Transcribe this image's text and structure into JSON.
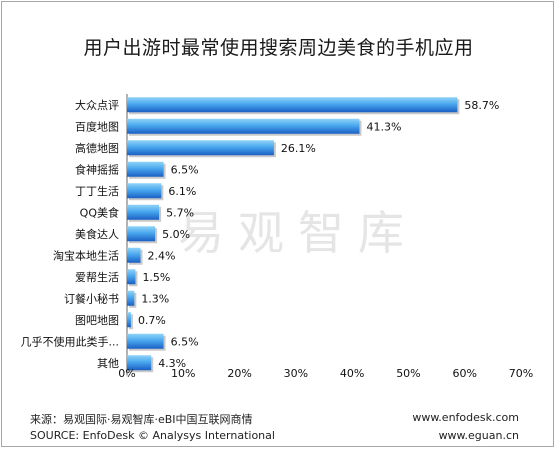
{
  "title": "用户出游时最常使用搜索周边美食的手机应用",
  "watermark": "易观智库",
  "footer": {
    "source_cn": "来源：易观国际·易观智库·eBI中国互联网商情",
    "source_en": "SOURCE: EnfoDesk © Analysys International",
    "url1": "www.enfodesk.com",
    "url2": "www.eguan.cn"
  },
  "colors": {
    "bar": "#1e6fd4",
    "bar_top": "#5ab7f2"
  },
  "chart_data": {
    "type": "bar",
    "orientation": "horizontal",
    "categories": [
      "大众点评",
      "百度地图",
      "高德地图",
      "食神摇摇",
      "丁丁生活",
      "QQ美食",
      "美食达人",
      "淘宝本地生活",
      "爱帮生活",
      "订餐小秘书",
      "图吧地图",
      "几乎不使用此类手...",
      "其他"
    ],
    "values": [
      58.7,
      41.3,
      26.1,
      6.5,
      6.1,
      5.7,
      5.0,
      2.4,
      1.5,
      1.3,
      0.7,
      6.5,
      4.3
    ],
    "value_labels": [
      "58.7%",
      "41.3%",
      "26.1%",
      "6.5%",
      "6.1%",
      "5.7%",
      "5.0%",
      "2.4%",
      "1.5%",
      "1.3%",
      "0.7%",
      "6.5%",
      "4.3%"
    ],
    "xlim": [
      0,
      70
    ],
    "xticks": [
      0,
      10,
      20,
      30,
      40,
      50,
      60,
      70
    ],
    "xtick_labels": [
      "0%",
      "10%",
      "20%",
      "30%",
      "40%",
      "50%",
      "60%",
      "70%"
    ],
    "grid": false,
    "legend": "none"
  }
}
